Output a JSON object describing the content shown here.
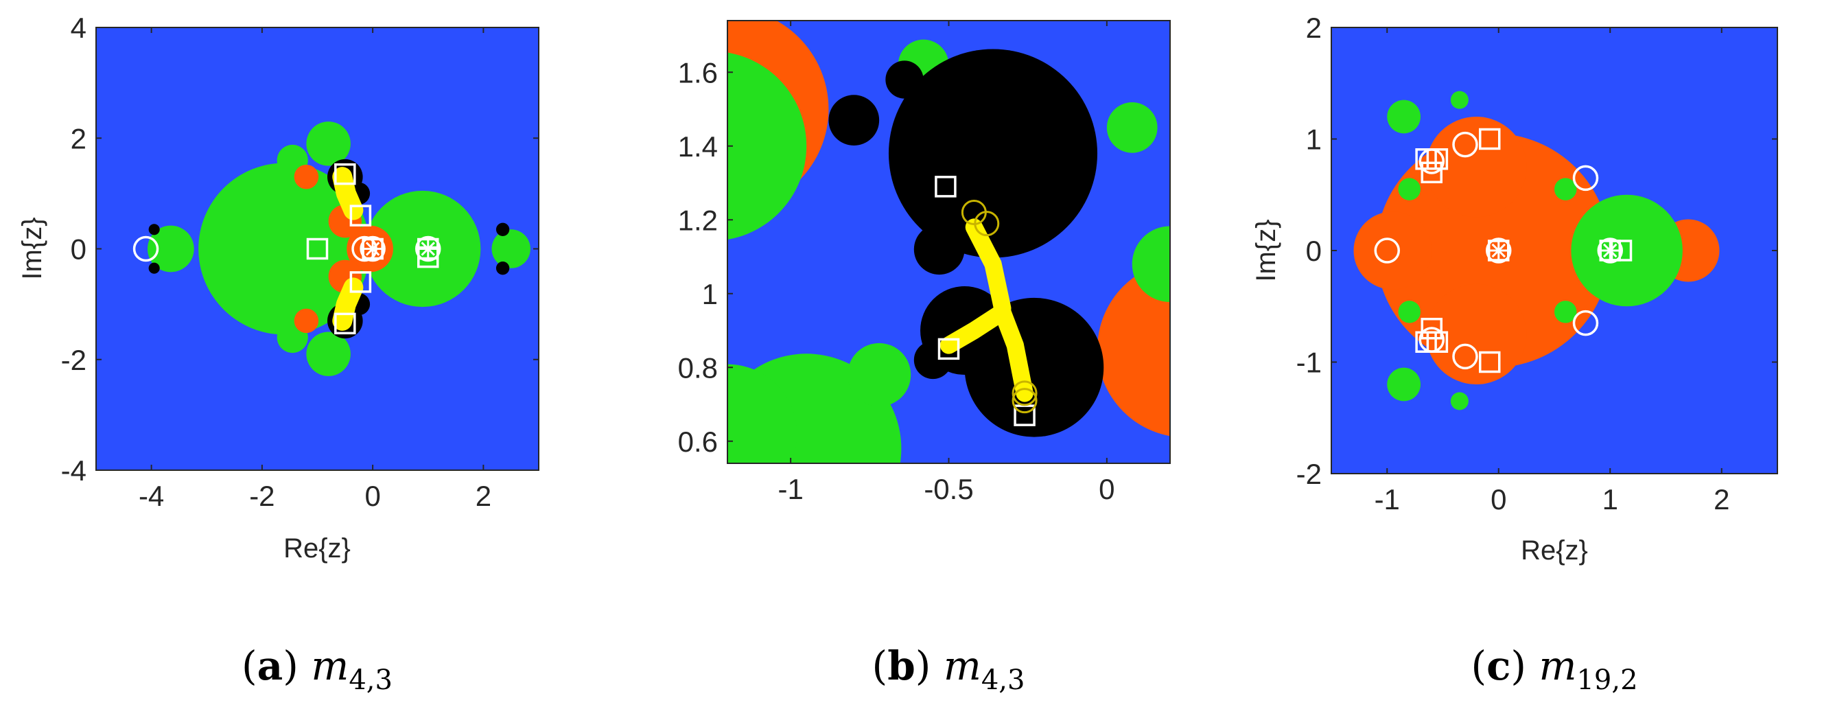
{
  "colors": {
    "blue": "#2b4fff",
    "green": "#24e01e",
    "orange": "#ff5a05",
    "black": "#000000",
    "yellow": "#fff500",
    "marker": "#ffffff"
  },
  "chart_data": [
    {
      "type": "heatmap",
      "caption": {
        "letter": "a",
        "math": "m",
        "sub": "4,3"
      },
      "xlabel": "Re{z}",
      "ylabel": "Im{z}",
      "xlim": [
        -5,
        3
      ],
      "ylim": [
        -4,
        4
      ],
      "xticks": [
        -4,
        -2,
        0,
        2
      ],
      "xtick_labels": [
        "-4",
        "-2",
        "0",
        "2"
      ],
      "yticks": [
        -4,
        -2,
        0,
        2,
        4
      ],
      "ytick_labels": [
        "-4",
        "-2",
        "0",
        "2",
        "4"
      ],
      "background": "blue",
      "regions": [
        {
          "shape": "circle",
          "color": "green",
          "cx": -1.6,
          "cy": 0,
          "r": 1.55
        },
        {
          "shape": "circle",
          "color": "green",
          "cx": 0.9,
          "cy": 0,
          "r": 1.05
        },
        {
          "shape": "circle",
          "color": "green",
          "cx": -3.65,
          "cy": 0,
          "r": 0.42
        },
        {
          "shape": "circle",
          "color": "green",
          "cx": 2.5,
          "cy": 0,
          "r": 0.35
        },
        {
          "shape": "circle",
          "color": "green",
          "cx": -0.8,
          "cy": 1.9,
          "r": 0.4
        },
        {
          "shape": "circle",
          "color": "green",
          "cx": -0.8,
          "cy": -1.9,
          "r": 0.4
        },
        {
          "shape": "circle",
          "color": "green",
          "cx": -1.45,
          "cy": 1.6,
          "r": 0.28
        },
        {
          "shape": "circle",
          "color": "green",
          "cx": -1.45,
          "cy": -1.6,
          "r": 0.28
        },
        {
          "shape": "circle",
          "color": "orange",
          "cx": -0.05,
          "cy": 0,
          "r": 0.42
        },
        {
          "shape": "circle",
          "color": "orange",
          "cx": -0.5,
          "cy": 0.5,
          "r": 0.3
        },
        {
          "shape": "circle",
          "color": "orange",
          "cx": -0.5,
          "cy": -0.5,
          "r": 0.3
        },
        {
          "shape": "circle",
          "color": "orange",
          "cx": -1.2,
          "cy": 1.3,
          "r": 0.22
        },
        {
          "shape": "circle",
          "color": "orange",
          "cx": -1.2,
          "cy": -1.3,
          "r": 0.22
        },
        {
          "shape": "circle",
          "color": "black",
          "cx": -0.5,
          "cy": 1.3,
          "r": 0.32
        },
        {
          "shape": "circle",
          "color": "black",
          "cx": -0.5,
          "cy": -1.3,
          "r": 0.32
        },
        {
          "shape": "circle",
          "color": "black",
          "cx": -0.25,
          "cy": 1.0,
          "r": 0.2
        },
        {
          "shape": "circle",
          "color": "black",
          "cx": -0.25,
          "cy": -1.0,
          "r": 0.2
        },
        {
          "shape": "circle",
          "color": "black",
          "cx": 2.35,
          "cy": 0.35,
          "r": 0.12
        },
        {
          "shape": "circle",
          "color": "black",
          "cx": 2.35,
          "cy": -0.35,
          "r": 0.12
        },
        {
          "shape": "circle",
          "color": "black",
          "cx": -3.95,
          "cy": 0.35,
          "r": 0.1
        },
        {
          "shape": "circle",
          "color": "black",
          "cx": -3.95,
          "cy": -0.35,
          "r": 0.1
        }
      ],
      "paths": [
        {
          "color": "yellow",
          "width": 0.36,
          "points": [
            [
              -0.55,
              1.3
            ],
            [
              -0.48,
              1.0
            ],
            [
              -0.35,
              0.7
            ]
          ]
        },
        {
          "color": "yellow",
          "width": 0.36,
          "points": [
            [
              -0.55,
              -1.3
            ],
            [
              -0.48,
              -1.0
            ],
            [
              -0.35,
              -0.7
            ]
          ]
        }
      ],
      "markers": [
        {
          "type": "circle",
          "x": -4.1,
          "y": 0
        },
        {
          "type": "circle",
          "x": -0.15,
          "y": 0
        },
        {
          "type": "circle",
          "x": 0,
          "y": 0
        },
        {
          "type": "circle",
          "x": 1.0,
          "y": 0
        },
        {
          "type": "square",
          "x": -1.0,
          "y": 0
        },
        {
          "type": "square",
          "x": 0,
          "y": 0
        },
        {
          "type": "square",
          "x": 1.0,
          "y": 0
        },
        {
          "type": "square",
          "x": 1.0,
          "y": -0.15
        },
        {
          "type": "square",
          "x": -0.5,
          "y": 1.35
        },
        {
          "type": "square",
          "x": -0.5,
          "y": -1.35
        },
        {
          "type": "square",
          "x": -0.22,
          "y": 0.6
        },
        {
          "type": "square",
          "x": -0.22,
          "y": -0.6
        },
        {
          "type": "star",
          "x": 0,
          "y": 0
        },
        {
          "type": "star",
          "x": 1.0,
          "y": 0
        }
      ]
    },
    {
      "type": "heatmap",
      "caption": {
        "letter": "b",
        "math": "m",
        "sub": "4,3"
      },
      "xlabel": "",
      "ylabel": "",
      "xlim": [
        -1.2,
        0.2
      ],
      "ylim": [
        0.54,
        1.74
      ],
      "xticks": [
        -1,
        -0.5,
        0
      ],
      "xtick_labels": [
        "-1",
        "-0.5",
        "0"
      ],
      "yticks": [
        0.6,
        0.8,
        1.0,
        1.2,
        1.4,
        1.6
      ],
      "ytick_labels": [
        "0.6",
        "0.8",
        "1",
        "1.2",
        "1.4",
        "1.6"
      ],
      "background": "blue",
      "regions": [
        {
          "shape": "circle",
          "color": "orange",
          "cx": -1.2,
          "cy": 1.5,
          "r": 0.32
        },
        {
          "shape": "circle",
          "color": "orange",
          "cx": 0.25,
          "cy": 0.85,
          "r": 0.28
        },
        {
          "shape": "circle",
          "color": "green",
          "cx": -1.25,
          "cy": 1.4,
          "r": 0.3
        },
        {
          "shape": "circle",
          "color": "green",
          "cx": -0.95,
          "cy": 0.58,
          "r": 0.3
        },
        {
          "shape": "circle",
          "color": "green",
          "cx": 0.2,
          "cy": 1.08,
          "r": 0.12
        },
        {
          "shape": "circle",
          "color": "green",
          "cx": -1.2,
          "cy": 0.62,
          "r": 0.22
        },
        {
          "shape": "circle",
          "color": "green",
          "cx": -0.72,
          "cy": 0.78,
          "r": 0.1
        },
        {
          "shape": "circle",
          "color": "green",
          "cx": -0.58,
          "cy": 1.62,
          "r": 0.08
        },
        {
          "shape": "circle",
          "color": "green",
          "cx": 0.08,
          "cy": 1.45,
          "r": 0.08
        },
        {
          "shape": "circle",
          "color": "black",
          "cx": -0.36,
          "cy": 1.38,
          "r": 0.33
        },
        {
          "shape": "circle",
          "color": "black",
          "cx": -0.23,
          "cy": 0.8,
          "r": 0.22
        },
        {
          "shape": "circle",
          "color": "black",
          "cx": -0.45,
          "cy": 0.9,
          "r": 0.14
        },
        {
          "shape": "circle",
          "color": "black",
          "cx": -0.8,
          "cy": 1.47,
          "r": 0.08
        },
        {
          "shape": "circle",
          "color": "black",
          "cx": -0.64,
          "cy": 1.58,
          "r": 0.06
        },
        {
          "shape": "circle",
          "color": "black",
          "cx": -0.53,
          "cy": 1.12,
          "r": 0.08
        },
        {
          "shape": "circle",
          "color": "black",
          "cx": -0.55,
          "cy": 0.82,
          "r": 0.06
        }
      ],
      "paths": [
        {
          "color": "yellow",
          "width": 0.055,
          "points": [
            [
              -0.42,
              1.18
            ],
            [
              -0.36,
              1.08
            ],
            [
              -0.33,
              0.96
            ]
          ]
        },
        {
          "color": "yellow",
          "width": 0.055,
          "points": [
            [
              -0.5,
              0.86
            ],
            [
              -0.42,
              0.9
            ],
            [
              -0.33,
              0.95
            ]
          ]
        },
        {
          "color": "yellow",
          "width": 0.055,
          "points": [
            [
              -0.33,
              0.95
            ],
            [
              -0.29,
              0.86
            ],
            [
              -0.26,
              0.73
            ]
          ]
        }
      ],
      "markers": [
        {
          "type": "square",
          "x": -0.51,
          "y": 1.29
        },
        {
          "type": "square",
          "x": -0.5,
          "y": 0.85
        },
        {
          "type": "square",
          "x": -0.26,
          "y": 0.67
        },
        {
          "type": "yellow-circle",
          "x": -0.42,
          "y": 1.22
        },
        {
          "type": "yellow-circle",
          "x": -0.38,
          "y": 1.19
        },
        {
          "type": "yellow-circle",
          "x": -0.26,
          "y": 0.73
        },
        {
          "type": "yellow-circle",
          "x": -0.26,
          "y": 0.71
        }
      ]
    },
    {
      "type": "heatmap",
      "caption": {
        "letter": "c",
        "math": "m",
        "sub": "19,2"
      },
      "xlabel": "Re{z}",
      "ylabel": "Im{z}",
      "xlim": [
        -1.5,
        2.5
      ],
      "ylim": [
        -2,
        2
      ],
      "xticks": [
        -1,
        0,
        1,
        2
      ],
      "xtick_labels": [
        "-1",
        "0",
        "1",
        "2"
      ],
      "yticks": [
        -2,
        -1,
        0,
        1,
        2
      ],
      "ytick_labels": [
        "-2",
        "-1",
        "0",
        "1",
        "2"
      ],
      "background": "blue",
      "regions": [
        {
          "shape": "circle",
          "color": "orange",
          "cx": -0.05,
          "cy": 0,
          "r": 1.05
        },
        {
          "shape": "circle",
          "color": "orange",
          "cx": -0.2,
          "cy": 0.75,
          "r": 0.45
        },
        {
          "shape": "circle",
          "color": "orange",
          "cx": -0.2,
          "cy": -0.75,
          "r": 0.45
        },
        {
          "shape": "circle",
          "color": "orange",
          "cx": -0.95,
          "cy": 0,
          "r": 0.35
        },
        {
          "shape": "circle",
          "color": "orange",
          "cx": 1.7,
          "cy": 0,
          "r": 0.28
        },
        {
          "shape": "circle",
          "color": "green",
          "cx": 1.15,
          "cy": 0,
          "r": 0.5
        },
        {
          "shape": "circle",
          "color": "green",
          "cx": -0.85,
          "cy": 1.2,
          "r": 0.15
        },
        {
          "shape": "circle",
          "color": "green",
          "cx": -0.85,
          "cy": -1.2,
          "r": 0.15
        },
        {
          "shape": "circle",
          "color": "green",
          "cx": -0.8,
          "cy": 0.55,
          "r": 0.1
        },
        {
          "shape": "circle",
          "color": "green",
          "cx": -0.8,
          "cy": -0.55,
          "r": 0.1
        },
        {
          "shape": "circle",
          "color": "green",
          "cx": 0.6,
          "cy": 0.55,
          "r": 0.1
        },
        {
          "shape": "circle",
          "color": "green",
          "cx": 0.6,
          "cy": -0.55,
          "r": 0.1
        },
        {
          "shape": "circle",
          "color": "green",
          "cx": -0.35,
          "cy": 1.35,
          "r": 0.08
        },
        {
          "shape": "circle",
          "color": "green",
          "cx": -0.35,
          "cy": -1.35,
          "r": 0.08
        }
      ],
      "paths": [],
      "markers": [
        {
          "type": "circle",
          "x": -1.0,
          "y": 0
        },
        {
          "type": "circle",
          "x": 0,
          "y": 0
        },
        {
          "type": "circle",
          "x": 1.0,
          "y": 0
        },
        {
          "type": "circle",
          "x": -0.6,
          "y": 0.8
        },
        {
          "type": "circle",
          "x": -0.6,
          "y": -0.8
        },
        {
          "type": "circle",
          "x": -0.3,
          "y": 0.95
        },
        {
          "type": "circle",
          "x": -0.3,
          "y": -0.95
        },
        {
          "type": "circle",
          "x": 0.78,
          "y": 0.65
        },
        {
          "type": "circle",
          "x": 0.78,
          "y": -0.65
        },
        {
          "type": "square",
          "x": 0,
          "y": 0
        },
        {
          "type": "square",
          "x": 1.0,
          "y": 0
        },
        {
          "type": "square",
          "x": 1.1,
          "y": 0
        },
        {
          "type": "square",
          "x": -0.65,
          "y": 0.82
        },
        {
          "type": "square",
          "x": -0.55,
          "y": 0.82
        },
        {
          "type": "square",
          "x": -0.6,
          "y": 0.7
        },
        {
          "type": "square",
          "x": -0.65,
          "y": -0.82
        },
        {
          "type": "square",
          "x": -0.55,
          "y": -0.82
        },
        {
          "type": "square",
          "x": -0.6,
          "y": -0.7
        },
        {
          "type": "square",
          "x": -0.08,
          "y": 1.0
        },
        {
          "type": "square",
          "x": -0.08,
          "y": -1.0
        },
        {
          "type": "star",
          "x": 0,
          "y": 0
        },
        {
          "type": "star",
          "x": 1.0,
          "y": 0
        }
      ]
    }
  ]
}
